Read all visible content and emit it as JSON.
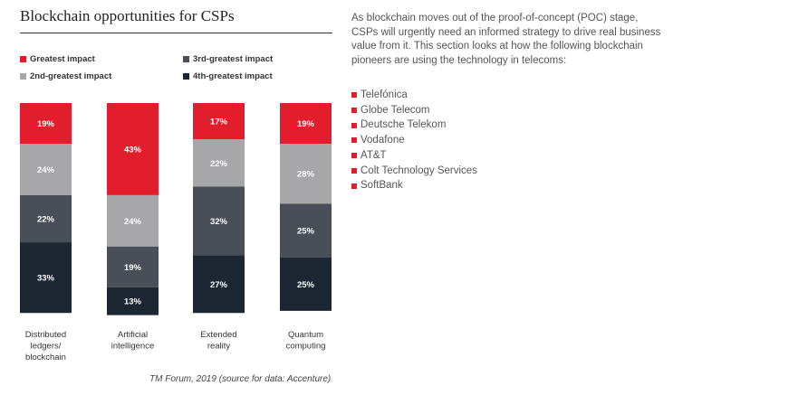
{
  "title": "Blockchain opportunities for CSPs",
  "legend": [
    {
      "label": "Greatest impact",
      "color": "#e31e2c"
    },
    {
      "label": "2nd-greatest impact",
      "color": "#a7a7aa"
    },
    {
      "label": "3rd-greatest impact",
      "color": "#4a4f57"
    },
    {
      "label": "4th-greatest impact",
      "color": "#1c2733"
    }
  ],
  "chart_data": {
    "type": "bar",
    "stacked": true,
    "categories": [
      [
        "Distributed",
        "ledgers/",
        "blockchain"
      ],
      [
        "Artificial",
        "intelligence"
      ],
      [
        "Extended",
        "reality"
      ],
      [
        "Quantum",
        "computing"
      ]
    ],
    "series": [
      {
        "name": "Greatest impact",
        "color": "#e31e2c",
        "values": [
          19,
          43,
          17,
          19
        ],
        "labels": [
          "19%",
          "43%",
          "17%",
          "19%"
        ]
      },
      {
        "name": "2nd-greatest impact",
        "color": "#a7a7aa",
        "values": [
          24,
          24,
          22,
          28
        ],
        "labels": [
          "24%",
          "24%",
          "22%",
          "28%"
        ]
      },
      {
        "name": "3rd-greatest impact",
        "color": "#4a4f57",
        "values": [
          22,
          19,
          32,
          25
        ],
        "labels": [
          "22%",
          "19%",
          "32%",
          "25%"
        ]
      },
      {
        "name": "4th-greatest impact",
        "color": "#1c2733",
        "values": [
          33,
          13,
          27,
          25
        ],
        "labels": [
          "33%",
          "13%",
          "27%",
          "25%"
        ]
      }
    ],
    "ylim": [
      0,
      100
    ],
    "legend_position": "top",
    "grid": false
  },
  "source": "TM Forum, 2019 (source for data: Accenture)",
  "intro": "As blockchain moves out of the proof-of-concept (POC) stage, CSPs will urgently need an informed strategy to drive real business value from it. This section looks at how the following blockchain pioneers are using the technology in telecoms:",
  "pioneers": [
    "Telefónica",
    "Globe Telecom",
    "Deutsche Telekom",
    "Vodafone",
    "AT&T",
    "Colt Technology Services",
    "SoftBank"
  ],
  "bullet_color": "#e31e2c"
}
